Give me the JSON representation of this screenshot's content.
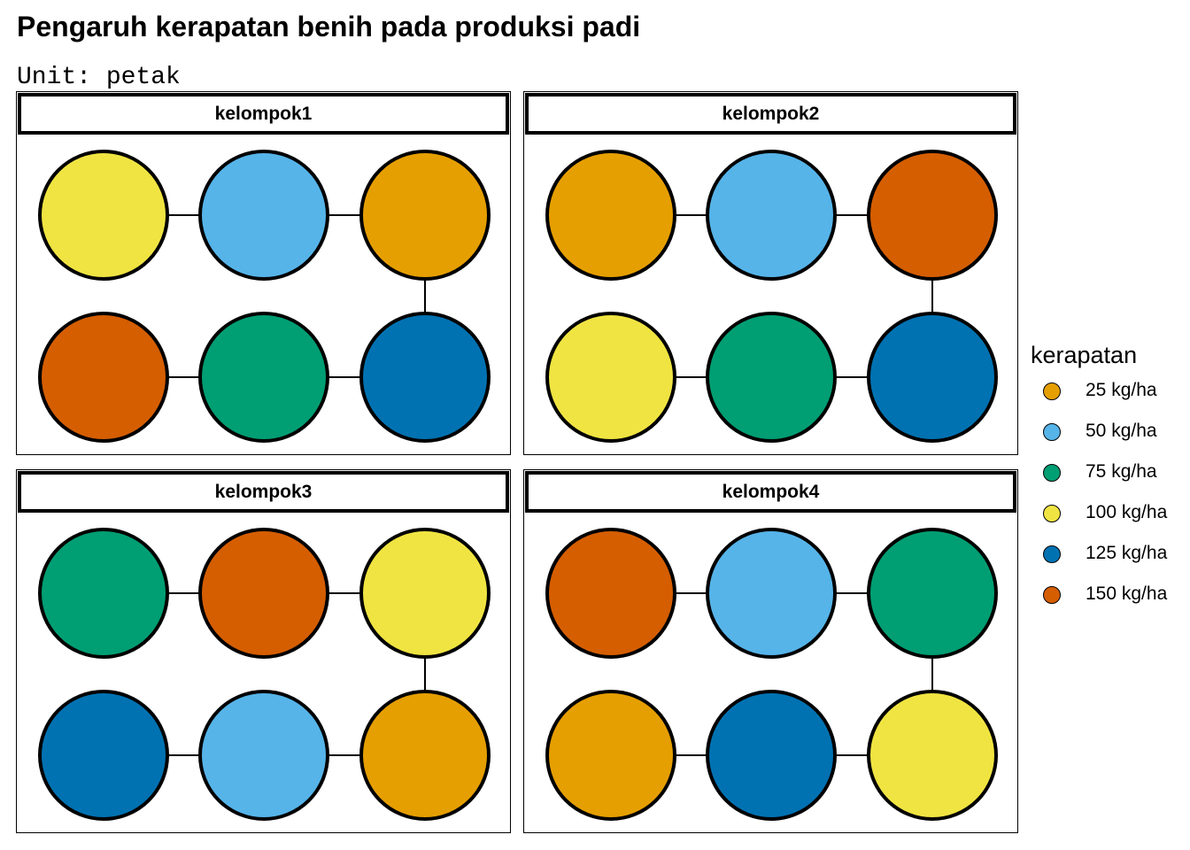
{
  "title": "Pengaruh kerapatan benih pada produksi padi",
  "subtitle": "Unit: petak",
  "legend": {
    "title": "kerapatan",
    "items": [
      {
        "label": "25 kg/ha",
        "color": "#E69F00"
      },
      {
        "label": "50 kg/ha",
        "color": "#56B4E9"
      },
      {
        "label": "75 kg/ha",
        "color": "#009E73"
      },
      {
        "label": "100 kg/ha",
        "color": "#F0E442"
      },
      {
        "label": "125 kg/ha",
        "color": "#0072B2"
      },
      {
        "label": "150 kg/ha",
        "color": "#D55E00"
      }
    ]
  },
  "panels": [
    {
      "label": "kelompok1",
      "rows": [
        [
          "100 kg/ha",
          "50 kg/ha",
          "25 kg/ha"
        ],
        [
          "150 kg/ha",
          "75 kg/ha",
          "125 kg/ha"
        ]
      ]
    },
    {
      "label": "kelompok2",
      "rows": [
        [
          "25 kg/ha",
          "50 kg/ha",
          "150 kg/ha"
        ],
        [
          "100 kg/ha",
          "75 kg/ha",
          "125 kg/ha"
        ]
      ]
    },
    {
      "label": "kelompok3",
      "rows": [
        [
          "75 kg/ha",
          "150 kg/ha",
          "100 kg/ha"
        ],
        [
          "125 kg/ha",
          "50 kg/ha",
          "25 kg/ha"
        ]
      ]
    },
    {
      "label": "kelompok4",
      "rows": [
        [
          "150 kg/ha",
          "50 kg/ha",
          "75 kg/ha"
        ],
        [
          "25 kg/ha",
          "125 kg/ha",
          "100 kg/ha"
        ]
      ]
    }
  ]
}
